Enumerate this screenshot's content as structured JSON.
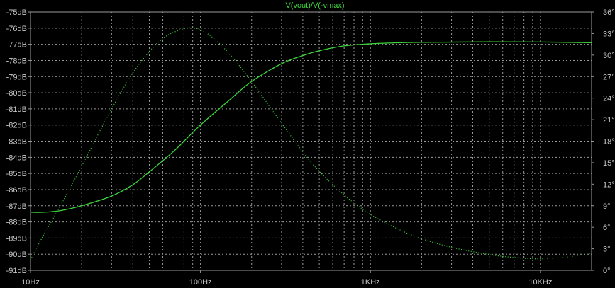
{
  "chart_data": {
    "type": "line",
    "title": "V(vout)/V(-vmax)",
    "x_scale": "log",
    "xlim": [
      "10Hz",
      "20KHz"
    ],
    "x_ticks": [
      {
        "value": 10,
        "label": "10Hz"
      },
      {
        "value": 100,
        "label": "100Hz"
      },
      {
        "value": 1000,
        "label": "1KHz"
      },
      {
        "value": 10000,
        "label": "10KHz"
      }
    ],
    "y_left": {
      "unit": "dB",
      "ylim": [
        -91,
        -75
      ],
      "tick_labels": [
        "-75dB",
        "-76dB",
        "-77dB",
        "-78dB",
        "-79dB",
        "-80dB",
        "-81dB",
        "-82dB",
        "-83dB",
        "-84dB",
        "-85dB",
        "-86dB",
        "-87dB",
        "-88dB",
        "-89dB",
        "-90dB",
        "-91dB"
      ]
    },
    "y_right": {
      "unit": "°",
      "ylim": [
        0,
        36
      ],
      "tick_labels": [
        "36°",
        "33°",
        "30°",
        "27°",
        "24°",
        "21°",
        "18°",
        "15°",
        "12°",
        "9°",
        "6°",
        "3°",
        "0°"
      ]
    },
    "grid": true,
    "series": [
      {
        "axis": "left",
        "style": "solid",
        "points": [
          [
            10,
            -87.4
          ],
          [
            12,
            -87.4
          ],
          [
            15,
            -87.3
          ],
          [
            20,
            -87.0
          ],
          [
            30,
            -86.4
          ],
          [
            40,
            -85.7
          ],
          [
            50,
            -84.9
          ],
          [
            70,
            -83.6
          ],
          [
            100,
            -82.0
          ],
          [
            150,
            -80.4
          ],
          [
            200,
            -79.3
          ],
          [
            300,
            -78.2
          ],
          [
            400,
            -77.7
          ],
          [
            500,
            -77.4
          ],
          [
            700,
            -77.1
          ],
          [
            1000,
            -76.97
          ],
          [
            1500,
            -76.9
          ],
          [
            2000,
            -76.88
          ],
          [
            5000,
            -76.85
          ],
          [
            10000,
            -76.86
          ],
          [
            20000,
            -76.9
          ]
        ]
      },
      {
        "axis": "right",
        "style": "dotted",
        "points": [
          [
            10,
            1.5
          ],
          [
            12,
            5.0
          ],
          [
            15,
            9.0
          ],
          [
            20,
            14.5
          ],
          [
            30,
            22.5
          ],
          [
            40,
            27.5
          ],
          [
            50,
            30.5
          ],
          [
            60,
            32.3
          ],
          [
            70,
            33.2
          ],
          [
            85,
            33.8
          ],
          [
            100,
            33.5
          ],
          [
            120,
            32.3
          ],
          [
            150,
            30.0
          ],
          [
            200,
            26.3
          ],
          [
            300,
            20.5
          ],
          [
            400,
            16.5
          ],
          [
            500,
            13.8
          ],
          [
            700,
            10.5
          ],
          [
            1000,
            7.8
          ],
          [
            1500,
            5.6
          ],
          [
            2000,
            4.4
          ],
          [
            3000,
            3.2
          ],
          [
            5000,
            2.2
          ],
          [
            7000,
            1.8
          ],
          [
            10000,
            1.6
          ],
          [
            15000,
            1.9
          ],
          [
            20000,
            2.4
          ]
        ]
      }
    ]
  },
  "colors": {
    "background": "#000000",
    "grid": "#9a9a9a",
    "axis_text": "#c8c8c8",
    "title": "#3cd63c",
    "trace": "#3cd63c"
  }
}
